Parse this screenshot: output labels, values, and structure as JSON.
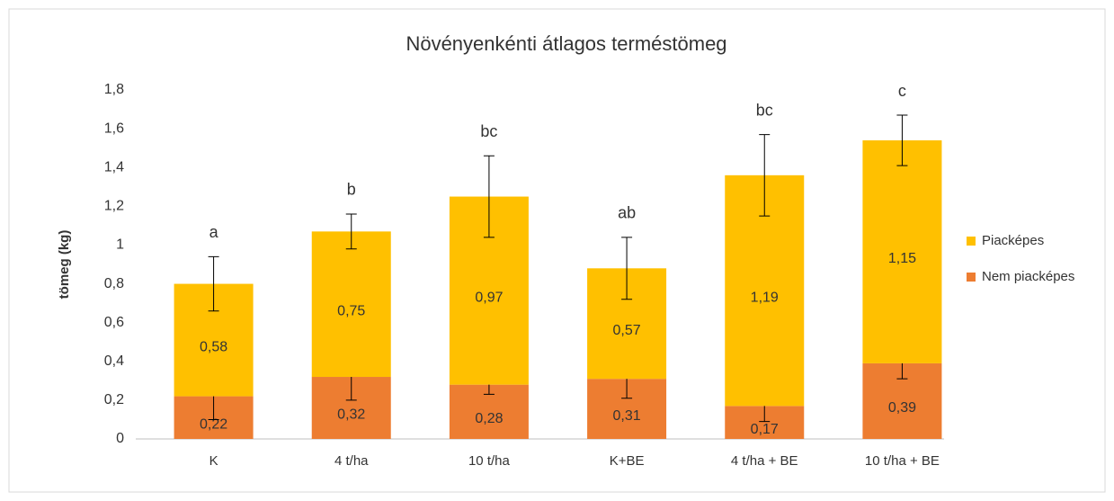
{
  "chart_data": {
    "type": "stacked_bar",
    "title": "Növényenkénti átlagos terméstömeg",
    "ylabel": "tömeg (kg)",
    "categories": [
      "K",
      "4 t/ha",
      "10 t/ha",
      "K+BE",
      "4 t/ha + BE",
      "10 t/ha + BE"
    ],
    "series": [
      {
        "name": "Nem piacképes",
        "color": "#ed7d31",
        "values": [
          0.22,
          0.32,
          0.28,
          0.31,
          0.17,
          0.39
        ],
        "value_labels": [
          "0,22",
          "0,32",
          "0,28",
          "0,31",
          "0,17",
          "0,39"
        ],
        "errors": [
          0.12,
          0.12,
          0.05,
          0.1,
          0.08,
          0.08
        ]
      },
      {
        "name": "Piacképes",
        "color": "#ffc000",
        "values": [
          0.58,
          0.75,
          0.97,
          0.57,
          1.19,
          1.15
        ],
        "value_labels": [
          "0,58",
          "0,75",
          "0,97",
          "0,57",
          "1,19",
          "1,15"
        ],
        "errors": [
          0.14,
          0.09,
          0.21,
          0.16,
          0.21,
          0.13
        ]
      }
    ],
    "annotations": [
      "a",
      "b",
      "bc",
      "ab",
      "bc",
      "c"
    ],
    "ylim": [
      0,
      1.8
    ],
    "yticks": [
      0,
      {
        "value": 0.2,
        "label": "0,2"
      },
      {
        "value": 0.4,
        "label": "0,4"
      },
      {
        "value": 0.6,
        "label": "0,6"
      },
      {
        "value": 0.8,
        "label": "0,8"
      },
      1,
      {
        "value": 1.2,
        "label": "1,2"
      },
      {
        "value": 1.4,
        "label": "1,4"
      },
      {
        "value": 1.6,
        "label": "1,6"
      },
      {
        "value": 1.8,
        "label": "1,8"
      }
    ],
    "grid": false,
    "legend": "right"
  }
}
